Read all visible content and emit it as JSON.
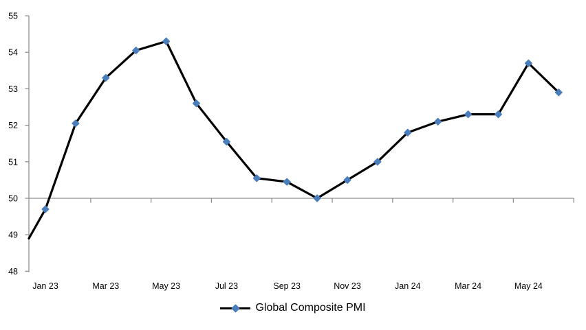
{
  "chart_data": {
    "type": "line",
    "title": "",
    "legend": "Global Composite PMI",
    "legend_position": "bottom-center",
    "x": [
      "Jan 23",
      "Feb 23",
      "Mar 23",
      "Apr 23",
      "May 23",
      "Jun 23",
      "Jul 23",
      "Aug 23",
      "Sep 23",
      "Oct 23",
      "Nov 23",
      "Dec 23",
      "Jan 24",
      "Feb 24",
      "Mar 24",
      "Apr 24",
      "May 24",
      "Jun 24"
    ],
    "values": [
      49.7,
      52.05,
      53.3,
      54.05,
      54.3,
      52.6,
      51.55,
      50.55,
      50.45,
      50.0,
      50.5,
      51.0,
      51.8,
      52.1,
      52.3,
      52.3,
      53.7,
      52.9
    ],
    "lead_in": {
      "note": "line enters plot from the left edge below the Jan 23 marker (prior month clipped at plot boundary, no marker visible)",
      "value_at_left_edge": 48.9
    },
    "x_tick_labels": [
      "Jan 23",
      "Mar 23",
      "May 23",
      "Jul 23",
      "Sep 23",
      "Nov 23",
      "Jan 24",
      "Mar 24",
      "May 24"
    ],
    "x_label_every_n_months": 2,
    "y_ticks": [
      48,
      49,
      50,
      51,
      52,
      53,
      54,
      55
    ],
    "ylim": [
      48,
      55
    ],
    "xlabel": "",
    "ylabel": "",
    "grid": "no gridlines; single gray horizontal category-axis line at y=50 with tick marks every 2 months",
    "marker_shape": "diamond",
    "colors": {
      "line": "#000000",
      "marker": "#4a7ebb",
      "axis": "#8e8e8e",
      "text": "#000000",
      "background": "#ffffff"
    }
  }
}
